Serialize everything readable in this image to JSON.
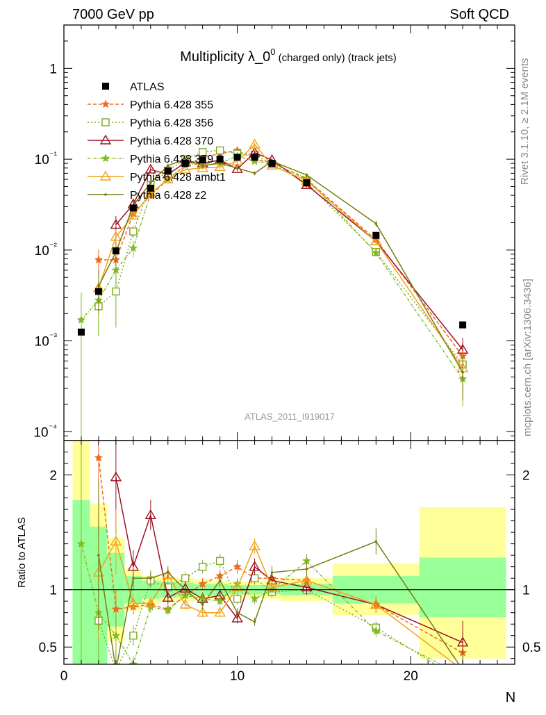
{
  "header": {
    "left": "7000 GeV pp",
    "right": "Soft QCD"
  },
  "side_labels": {
    "rivet": "Rivet 3.1.10, ≥ 2.1M events",
    "mcplots": "mcplots.cern.ch [arXiv:1306.3436]"
  },
  "chart_data": {
    "type": "scatter",
    "title": "Multiplicity λ_0⁰ (charged only) (track jets)",
    "title_main": "Multiplicity λ_0",
    "title_sup": "0",
    "title_tail": " (charged only) (track jets)",
    "watermark": "ATLAS_2011_I919017",
    "xlabel": "N",
    "ylabel_ratio": "Ratio to ATLAS",
    "xlim": [
      0,
      26
    ],
    "ylim": [
      8e-05,
      3
    ],
    "ylog": true,
    "ratio_ylim": [
      0.35,
      2.3
    ],
    "x_ticks": [
      "0",
      "10",
      "20"
    ],
    "y_ticks": [
      "10⁻⁴",
      "10⁻³",
      "10⁻²",
      "10⁻¹",
      "1"
    ],
    "ratio_ticks": [
      "0.5",
      "1",
      "2"
    ],
    "colors": {
      "p355": "#ee6a1c",
      "p356": "#7fa81f",
      "p370": "#a01020",
      "p379": "#80bb22",
      "ambt1": "#f2a21a",
      "z2": "#7a7a10",
      "band_inner": "#99ff99",
      "band_outer": "#ffff99"
    },
    "reference": {
      "name": "ATLAS",
      "x": [
        1,
        2,
        3,
        4,
        5,
        6,
        7,
        8,
        9,
        10,
        11,
        12,
        14,
        18,
        23
      ],
      "y": [
        0.00125,
        0.0035,
        0.0098,
        0.029,
        0.048,
        0.074,
        0.09,
        0.098,
        0.1,
        0.105,
        0.105,
        0.09,
        0.055,
        0.0145,
        0.0015
      ]
    },
    "bands": [
      {
        "x0": 0.5,
        "x1": 1.5,
        "inner": [
          0.05,
          1.78
        ],
        "outer": [
          0.05,
          2.3
        ]
      },
      {
        "x0": 1.5,
        "x1": 2.5,
        "inner": [
          0.35,
          1.55
        ],
        "outer": [
          0.35,
          1.75
        ]
      },
      {
        "x0": 2.5,
        "x1": 3.5,
        "inner": [
          0.68,
          1.32
        ],
        "outer": [
          0.55,
          1.45
        ]
      },
      {
        "x0": 3.5,
        "x1": 4.5,
        "inner": [
          0.88,
          1.12
        ],
        "outer": [
          0.82,
          1.18
        ]
      },
      {
        "x0": 4.5,
        "x1": 5.5,
        "inner": [
          0.92,
          1.08
        ],
        "outer": [
          0.88,
          1.12
        ]
      },
      {
        "x0": 5.5,
        "x1": 6.5,
        "inner": [
          0.93,
          1.07
        ],
        "outer": [
          0.89,
          1.11
        ]
      },
      {
        "x0": 6.5,
        "x1": 7.5,
        "inner": [
          0.94,
          1.06
        ],
        "outer": [
          0.9,
          1.1
        ]
      },
      {
        "x0": 7.5,
        "x1": 8.5,
        "inner": [
          0.95,
          1.05
        ],
        "outer": [
          0.91,
          1.09
        ]
      },
      {
        "x0": 8.5,
        "x1": 9.5,
        "inner": [
          0.95,
          1.05
        ],
        "outer": [
          0.92,
          1.08
        ]
      },
      {
        "x0": 9.5,
        "x1": 10.5,
        "inner": [
          0.96,
          1.04
        ],
        "outer": [
          0.93,
          1.07
        ]
      },
      {
        "x0": 10.5,
        "x1": 11.5,
        "inner": [
          0.96,
          1.04
        ],
        "outer": [
          0.93,
          1.07
        ]
      },
      {
        "x0": 11.5,
        "x1": 12.5,
        "inner": [
          0.96,
          1.04
        ],
        "outer": [
          0.92,
          1.08
        ]
      },
      {
        "x0": 12.5,
        "x1": 15.5,
        "inner": [
          0.95,
          1.05
        ],
        "outer": [
          0.9,
          1.1
        ]
      },
      {
        "x0": 15.5,
        "x1": 20.5,
        "inner": [
          0.88,
          1.12
        ],
        "outer": [
          0.78,
          1.23
        ]
      },
      {
        "x0": 20.5,
        "x1": 25.5,
        "inner": [
          0.76,
          1.28
        ],
        "outer": [
          0.4,
          1.72
        ]
      }
    ],
    "series": [
      {
        "name": "Pythia 6.428 355",
        "key": "p355",
        "marker": "star",
        "dash": "5,3",
        "y": [
          null,
          0.0078,
          0.0078,
          0.025,
          0.04,
          0.06,
          0.085,
          0.105,
          0.115,
          0.125,
          0.1,
          0.092,
          0.06,
          0.013,
          0.00068
        ],
        "err": [
          0,
          0.3,
          0.2,
          0.08,
          0.05,
          0.05,
          0.05,
          0.05,
          0.05,
          0.05,
          0.05,
          0.05,
          0.05,
          0.08,
          0.4
        ],
        "ratio": [
          null,
          2.15,
          0.83,
          0.85,
          0.87,
          0.83,
          0.95,
          1.05,
          1.12,
          1.2,
          1.1,
          1.1,
          1.08,
          0.87,
          0.45
        ]
      },
      {
        "name": "Pythia 6.428 356",
        "key": "p356",
        "marker": "square",
        "dash": "2,3",
        "y": [
          null,
          0.0024,
          0.0035,
          0.016,
          0.052,
          0.075,
          0.1,
          0.12,
          0.125,
          0.115,
          0.112,
          0.088,
          0.055,
          0.0095,
          0.00055
        ],
        "err": [
          0,
          0.5,
          0.6,
          0.15,
          0.06,
          0.05,
          0.05,
          0.05,
          0.05,
          0.05,
          0.05,
          0.05,
          0.05,
          0.08,
          0.5
        ],
        "ratio": [
          null,
          0.73,
          0.3,
          0.6,
          1.08,
          1.02,
          1.1,
          1.2,
          1.25,
          0.92,
          1.1,
          0.98,
          1.0,
          0.67,
          0.2
        ]
      },
      {
        "name": "Pythia 6.428 370",
        "key": "p370",
        "marker": "triangle",
        "dash": "",
        "y": [
          null,
          null,
          0.019,
          0.032,
          0.077,
          0.068,
          0.092,
          0.09,
          0.098,
          0.078,
          0.118,
          0.098,
          0.052,
          0.0125,
          0.0008
        ],
        "err": [
          0,
          0,
          0.25,
          0.12,
          0.08,
          0.06,
          0.06,
          0.06,
          0.06,
          0.06,
          0.06,
          0.06,
          0.06,
          0.08,
          0.35
        ],
        "ratio": [
          null,
          null,
          1.98,
          1.2,
          1.65,
          0.93,
          1.01,
          0.92,
          0.95,
          0.75,
          1.2,
          1.08,
          1.02,
          0.87,
          0.54
        ]
      },
      {
        "name": "Pythia 6.428 379",
        "key": "p379",
        "marker": "star",
        "dash": "4,2,1,2",
        "y": [
          0.0017,
          0.0028,
          0.006,
          0.0105,
          0.042,
          0.06,
          0.085,
          0.09,
          0.09,
          0.108,
          0.095,
          0.09,
          0.062,
          0.0093,
          0.00038
        ],
        "err": [
          1.0,
          0.6,
          0.3,
          0.2,
          0.06,
          0.05,
          0.05,
          0.05,
          0.05,
          0.05,
          0.05,
          0.05,
          0.05,
          0.08,
          0.5
        ],
        "ratio": [
          1.4,
          0.8,
          0.6,
          0.35,
          0.85,
          0.82,
          0.95,
          0.92,
          0.9,
          1.05,
          0.92,
          1.0,
          1.25,
          0.64,
          0.25
        ]
      },
      {
        "name": "Pythia 6.428 ambt1",
        "key": "ambt1",
        "marker": "triangle",
        "dash": "",
        "y": [
          null,
          0.0038,
          0.014,
          0.024,
          0.042,
          0.06,
          0.077,
          0.08,
          0.082,
          0.095,
          0.145,
          0.085,
          0.058,
          0.0125,
          0.0005
        ],
        "err": [
          0,
          0.5,
          0.2,
          0.1,
          0.06,
          0.05,
          0.05,
          0.05,
          0.05,
          0.05,
          0.05,
          0.05,
          0.05,
          0.08,
          0.5
        ],
        "ratio": [
          null,
          1.15,
          1.42,
          0.88,
          0.88,
          1.13,
          0.87,
          0.8,
          0.8,
          1.02,
          1.38,
          1.02,
          1.08,
          0.87,
          0.3
        ]
      },
      {
        "name": "Pythia 6.428 z2",
        "key": "z2",
        "marker": "dot",
        "dash": "",
        "y": [
          null,
          0.004,
          0.0095,
          0.031,
          0.055,
          0.085,
          0.1,
          0.085,
          0.09,
          0.08,
          0.07,
          0.095,
          0.067,
          0.0195,
          0.00045
        ],
        "err": [
          0,
          0.5,
          0.3,
          0.1,
          0.06,
          0.05,
          0.05,
          0.05,
          0.05,
          0.05,
          0.05,
          0.05,
          0.05,
          0.08,
          0.5
        ],
        "ratio": [
          null,
          1.3,
          0.3,
          1.1,
          1.1,
          1.15,
          1.0,
          0.87,
          1.08,
          0.8,
          0.72,
          1.15,
          1.18,
          1.42,
          0.3
        ]
      }
    ]
  }
}
